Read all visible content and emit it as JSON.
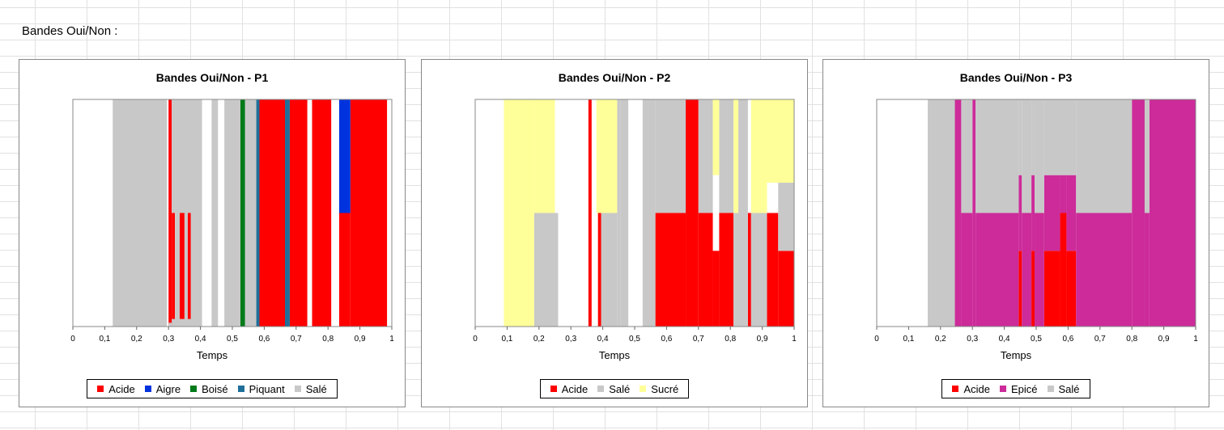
{
  "sheet": {
    "label": "Bandes Oui/Non :"
  },
  "chart_data": [
    {
      "type": "area",
      "title": "Bandes Oui/Non - P1",
      "xlabel": "Temps",
      "ylabel": "",
      "xlim": [
        0,
        1
      ],
      "ylim": [
        0,
        3
      ],
      "x_ticks": [
        0,
        0.1,
        0.2,
        0.3,
        0.4,
        0.5,
        0.6,
        0.7,
        0.8,
        0.9,
        1
      ],
      "x_tick_labels": [
        "0",
        "0,1",
        "0,2",
        "0,3",
        "0,4",
        "0,5",
        "0,6",
        "0,7",
        "0,8",
        "0,9",
        "1"
      ],
      "legend": "bottom",
      "grid": false,
      "series": [
        {
          "name": "Acide",
          "color": "#ff0000",
          "bands": [
            [
              0.3,
              0.31,
              0,
              3
            ],
            [
              0.31,
              0.32,
              0,
              1.5
            ],
            [
              0.335,
              0.35,
              0,
              1.5
            ],
            [
              0.36,
              0.37,
              0,
              1.5
            ],
            [
              0.585,
              0.665,
              0,
              3
            ],
            [
              0.68,
              0.735,
              0,
              3
            ],
            [
              0.75,
              0.81,
              0,
              3
            ],
            [
              0.835,
              0.87,
              0,
              1.5
            ],
            [
              0.87,
              0.985,
              0,
              3
            ]
          ]
        },
        {
          "name": "Aigre",
          "color": "#0033dd",
          "bands": [
            [
              0.835,
              0.87,
              1.5,
              3
            ]
          ]
        },
        {
          "name": "Boisé",
          "color": "#007a1a",
          "bands": [
            [
              0.525,
              0.54,
              0,
              3
            ]
          ]
        },
        {
          "name": "Piquant",
          "color": "#1f6f9a",
          "bands": [
            [
              0.575,
              0.585,
              0,
              3
            ],
            [
              0.665,
              0.68,
              0,
              3
            ]
          ]
        },
        {
          "name": "Salé",
          "color": "#c8c8c8",
          "bands": [
            [
              0.125,
              0.295,
              0,
              3
            ],
            [
              0.3,
              0.31,
              0,
              0.05
            ],
            [
              0.31,
              0.405,
              1.5,
              3
            ],
            [
              0.31,
              0.405,
              0,
              0.1
            ],
            [
              0.32,
              0.335,
              0,
              1.5
            ],
            [
              0.35,
              0.36,
              0,
              1.5
            ],
            [
              0.37,
              0.405,
              0,
              1.5
            ],
            [
              0.435,
              0.455,
              0,
              3
            ],
            [
              0.475,
              0.525,
              0,
              3
            ],
            [
              0.54,
              0.575,
              0,
              3
            ]
          ]
        }
      ]
    },
    {
      "type": "area",
      "title": "Bandes Oui/Non - P2",
      "xlabel": "Temps",
      "ylabel": "",
      "xlim": [
        0,
        1
      ],
      "ylim": [
        0,
        3
      ],
      "x_ticks": [
        0,
        0.1,
        0.2,
        0.3,
        0.4,
        0.5,
        0.6,
        0.7,
        0.8,
        0.9,
        1
      ],
      "x_tick_labels": [
        "0",
        "0,1",
        "0,2",
        "0,3",
        "0,4",
        "0,5",
        "0,6",
        "0,7",
        "0,8",
        "0,9",
        "1"
      ],
      "legend": "bottom",
      "grid": false,
      "series": [
        {
          "name": "Acide",
          "color": "#ff0000",
          "bands": [
            [
              0.355,
              0.365,
              0,
              3
            ],
            [
              0.385,
              0.395,
              0,
              1.5
            ],
            [
              0.565,
              0.66,
              0,
              1.5
            ],
            [
              0.66,
              0.7,
              0,
              3
            ],
            [
              0.7,
              0.745,
              0,
              1.5
            ],
            [
              0.745,
              0.765,
              0,
              1
            ],
            [
              0.765,
              0.81,
              0,
              1.5
            ],
            [
              0.855,
              0.865,
              0,
              1.5
            ],
            [
              0.915,
              0.95,
              0,
              1.5
            ],
            [
              0.95,
              1,
              0,
              1
            ]
          ]
        },
        {
          "name": "Salé",
          "color": "#c8c8c8",
          "bands": [
            [
              0.185,
              0.26,
              0,
              1.5
            ],
            [
              0.395,
              0.445,
              0,
              1.5
            ],
            [
              0.445,
              0.455,
              0,
              3
            ],
            [
              0.455,
              0.48,
              0,
              3
            ],
            [
              0.525,
              0.565,
              0,
              3
            ],
            [
              0.565,
              0.66,
              1.5,
              3
            ],
            [
              0.7,
              0.745,
              1.5,
              3
            ],
            [
              0.765,
              0.81,
              1.5,
              3
            ],
            [
              0.81,
              0.825,
              0,
              1.5
            ],
            [
              0.825,
              0.855,
              0,
              3
            ],
            [
              0.865,
              0.915,
              0,
              1.5
            ],
            [
              0.95,
              1,
              1,
              1.9
            ]
          ]
        },
        {
          "name": "Sucré",
          "color": "#ffff99",
          "bands": [
            [
              0.09,
              0.185,
              0,
              3
            ],
            [
              0.185,
              0.25,
              1.5,
              3
            ],
            [
              0.38,
              0.445,
              1.5,
              3
            ],
            [
              0.745,
              0.765,
              2,
              3
            ],
            [
              0.81,
              0.825,
              1.5,
              3
            ],
            [
              0.865,
              0.915,
              1.5,
              3
            ],
            [
              0.915,
              1,
              1.9,
              3
            ]
          ]
        }
      ]
    },
    {
      "type": "area",
      "title": "Bandes Oui/Non - P3",
      "xlabel": "Temps",
      "ylabel": "",
      "xlim": [
        0,
        1
      ],
      "ylim": [
        0,
        3
      ],
      "x_ticks": [
        0,
        0.1,
        0.2,
        0.3,
        0.4,
        0.5,
        0.6,
        0.7,
        0.8,
        0.9,
        1
      ],
      "x_tick_labels": [
        "0",
        "0,1",
        "0,2",
        "0,3",
        "0,4",
        "0,5",
        "0,6",
        "0,7",
        "0,8",
        "0,9",
        "1"
      ],
      "legend": "bottom",
      "grid": false,
      "series": [
        {
          "name": "Acide",
          "color": "#ff0000",
          "bands": [
            [
              0.445,
              0.455,
              0,
              1
            ],
            [
              0.485,
              0.495,
              0,
              1
            ],
            [
              0.525,
              0.575,
              0,
              1
            ],
            [
              0.575,
              0.595,
              0,
              1.5
            ],
            [
              0.595,
              0.625,
              0,
              1
            ]
          ]
        },
        {
          "name": "Epicé",
          "color": "#cc2b99",
          "bands": [
            [
              0.245,
              0.265,
              0,
              3
            ],
            [
              0.265,
              0.3,
              0,
              1.5
            ],
            [
              0.3,
              0.31,
              0,
              3
            ],
            [
              0.31,
              0.445,
              0,
              1.5
            ],
            [
              0.445,
              0.455,
              1,
              2
            ],
            [
              0.455,
              0.485,
              0,
              1.5
            ],
            [
              0.485,
              0.495,
              1,
              2
            ],
            [
              0.495,
              0.525,
              0,
              1.5
            ],
            [
              0.525,
              0.575,
              1,
              2
            ],
            [
              0.575,
              0.595,
              1.5,
              2
            ],
            [
              0.595,
              0.625,
              1,
              2
            ],
            [
              0.625,
              0.8,
              0,
              1.5
            ],
            [
              0.8,
              0.84,
              0,
              3
            ],
            [
              0.84,
              0.855,
              0,
              1.5
            ],
            [
              0.855,
              1,
              0,
              3
            ]
          ]
        },
        {
          "name": "Salé",
          "color": "#c8c8c8",
          "bands": [
            [
              0.16,
              0.245,
              0,
              3
            ],
            [
              0.265,
              0.3,
              1.5,
              3
            ],
            [
              0.31,
              0.445,
              1.5,
              3
            ],
            [
              0.445,
              0.455,
              2,
              3
            ],
            [
              0.455,
              0.485,
              1.5,
              3
            ],
            [
              0.485,
              0.495,
              2,
              3
            ],
            [
              0.495,
              0.525,
              1.5,
              3
            ],
            [
              0.525,
              0.625,
              2,
              3
            ],
            [
              0.625,
              0.8,
              1.5,
              3
            ],
            [
              0.84,
              0.855,
              1.5,
              3
            ]
          ]
        }
      ]
    }
  ]
}
